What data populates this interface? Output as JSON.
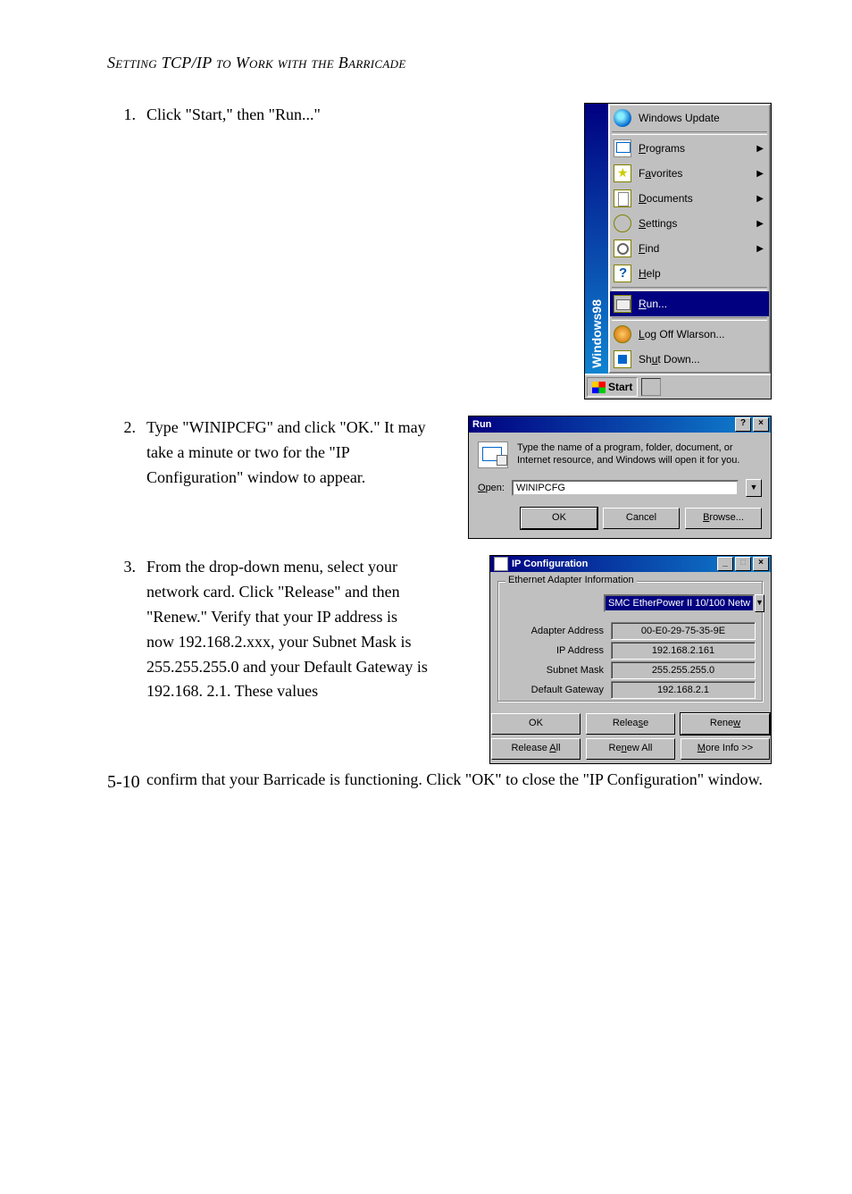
{
  "header": "Setting TCP/IP to Work with the Barricade",
  "steps": {
    "s1": {
      "num": "1.",
      "body": "Click \"Start,\" then \"Run...\""
    },
    "s2": {
      "num": "2.",
      "body": "Type \"WINIPCFG\" and click \"OK.\" It may take a minute or two for the \"IP Configuration\" window to appear."
    },
    "s3": {
      "num": "3.",
      "body": "From the drop-down menu, select your network card. Click \"Release\" and then \"Renew.\" Verify that your IP address is now 192.168.2.xxx, your Subnet Mask is 255.255.255.0 and your Default Gateway is 192.168. 2.1. These values"
    }
  },
  "trail": "confirm that your Barricade is functioning. Click \"OK\" to close the \"IP Configuration\" window.",
  "page_number": "5-10",
  "start_menu": {
    "stripe": "Windows98",
    "items": [
      {
        "label": "Windows Update",
        "underline": "",
        "arrow": false,
        "icon": "globe",
        "sel": false
      },
      {
        "sep": true
      },
      {
        "label": "Programs",
        "underline": "P",
        "arrow": true,
        "icon": "progs",
        "sel": false
      },
      {
        "label": "Favorites",
        "underline": "a",
        "arrow": true,
        "icon": "fav",
        "sel": false
      },
      {
        "label": "Documents",
        "underline": "D",
        "arrow": true,
        "icon": "docs",
        "sel": false
      },
      {
        "label": "Settings",
        "underline": "S",
        "arrow": true,
        "icon": "settings",
        "sel": false
      },
      {
        "label": "Find",
        "underline": "F",
        "arrow": true,
        "icon": "find",
        "sel": false
      },
      {
        "label": "Help",
        "underline": "H",
        "arrow": false,
        "icon": "help",
        "sel": false
      },
      {
        "sep": true
      },
      {
        "label": "Run...",
        "underline": "R",
        "arrow": false,
        "icon": "run",
        "sel": true
      },
      {
        "sep": true
      },
      {
        "label": "Log Off Wlarson...",
        "underline": "L",
        "arrow": false,
        "icon": "logoff",
        "sel": false
      },
      {
        "label": "Shut Down...",
        "underline": "u",
        "arrow": false,
        "icon": "shutdown",
        "sel": false
      }
    ],
    "start_btn": "Start"
  },
  "run_dialog": {
    "title": "Run",
    "desc": "Type the name of a program, folder, document, or Internet resource, and Windows will open it for you.",
    "open_label": "Open:",
    "open_underline": "O",
    "value": "WINIPCFG",
    "buttons": {
      "ok": "OK",
      "cancel": "Cancel",
      "browse": "Browse..."
    }
  },
  "ip_dialog": {
    "title": "IP Configuration",
    "group": "Ethernet Adapter Information",
    "adapter": "SMC EtherPower II 10/100 Netw",
    "rows": [
      {
        "label": "Adapter Address",
        "value": "00-E0-29-75-35-9E"
      },
      {
        "label": "IP Address",
        "value": "192.168.2.161"
      },
      {
        "label": "Subnet Mask",
        "value": "255.255.255.0"
      },
      {
        "label": "Default Gateway",
        "value": "192.168.2.1"
      }
    ],
    "buttons": {
      "ok": "OK",
      "release": "Release",
      "renew": "Renew",
      "release_all": "Release All",
      "renew_all": "Renew All",
      "more": "More Info >>"
    }
  }
}
